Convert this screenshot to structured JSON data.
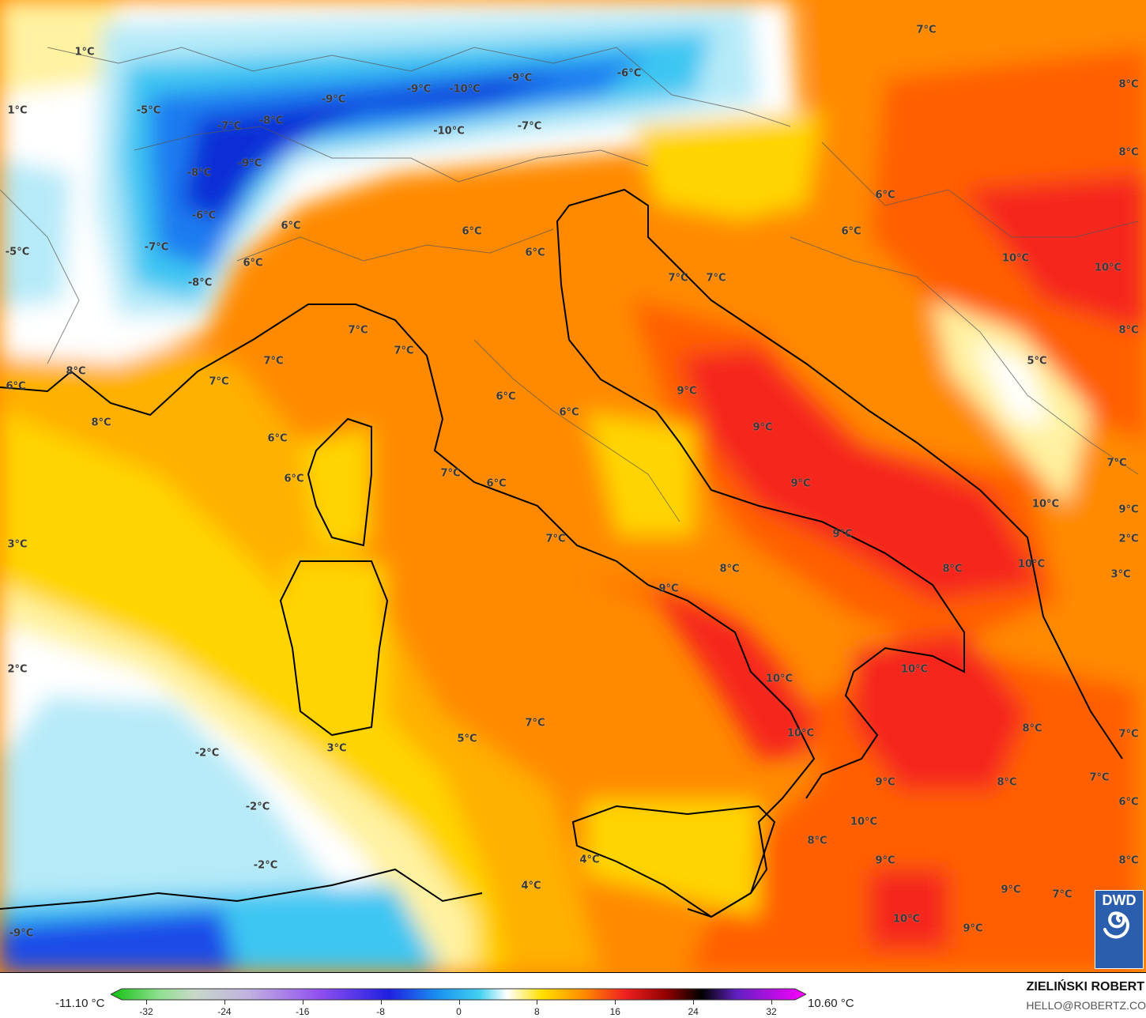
{
  "map": {
    "labels": [
      "1°C",
      "1°C",
      "-5°C",
      "-7°C",
      "-8°C",
      "-9°C",
      "-9°C",
      "-10°C",
      "-9°C",
      "-6°C",
      "-10°C",
      "-7°C",
      "-9°C",
      "-8°C",
      "-6°C",
      "-7°C",
      "-5°C",
      "-8°C",
      "6°C",
      "6°C",
      "6°C",
      "6°C",
      "7°C",
      "7°C",
      "7°C",
      "7°C",
      "8°C",
      "6°C",
      "8°C",
      "6°C",
      "6°C",
      "6°C",
      "6°C",
      "7°C",
      "6°C",
      "7°C",
      "3°C",
      "2°C",
      "-2°C",
      "-2°C",
      "-2°C",
      "3°C",
      "5°C",
      "7°C",
      "4°C",
      "4°C",
      "-9°C",
      "7°C",
      "8°C",
      "8°C",
      "6°C",
      "6°C",
      "10°C",
      "10°C",
      "8°C",
      "5°C",
      "7°C",
      "7°C",
      "9°C",
      "9°C",
      "9°C",
      "9°C",
      "7°C",
      "10°C",
      "9°C",
      "2°C",
      "10°C",
      "3°C",
      "8°C",
      "8°C",
      "9°C",
      "10°C",
      "10°C",
      "10°C",
      "8°C",
      "7°C",
      "9°C",
      "8°C",
      "7°C",
      "6°C",
      "10°C",
      "8°C",
      "9°C",
      "8°C",
      "9°C",
      "7°C",
      "10°C",
      "9°C"
    ],
    "palette": {
      "deep_blue": "#0b2fd6",
      "blue": "#1a7cf0",
      "cyan": "#3cc6f2",
      "light_blue": "#b6eaf8",
      "white": "#ffffff",
      "pale_yellow": "#fff2a0",
      "yellow": "#ffd400",
      "amber": "#ffb000",
      "orange": "#ff8a00",
      "dark_orange": "#ff5e00",
      "red": "#f5281a"
    }
  },
  "legend": {
    "min_value": "-11.10 °C",
    "max_value": "10.60 °C",
    "ticks": [
      "-32",
      "-24",
      "-16",
      "-8",
      "0",
      "8",
      "16",
      "24",
      "32"
    ],
    "range": [
      -32,
      32
    ]
  },
  "credit": {
    "author": "ZIELIŃSKI ROBERT",
    "email": "HELLO@ROBERTZ.CO"
  },
  "logo": {
    "text": "DWD",
    "icon": "dwd-spiral-logo"
  }
}
